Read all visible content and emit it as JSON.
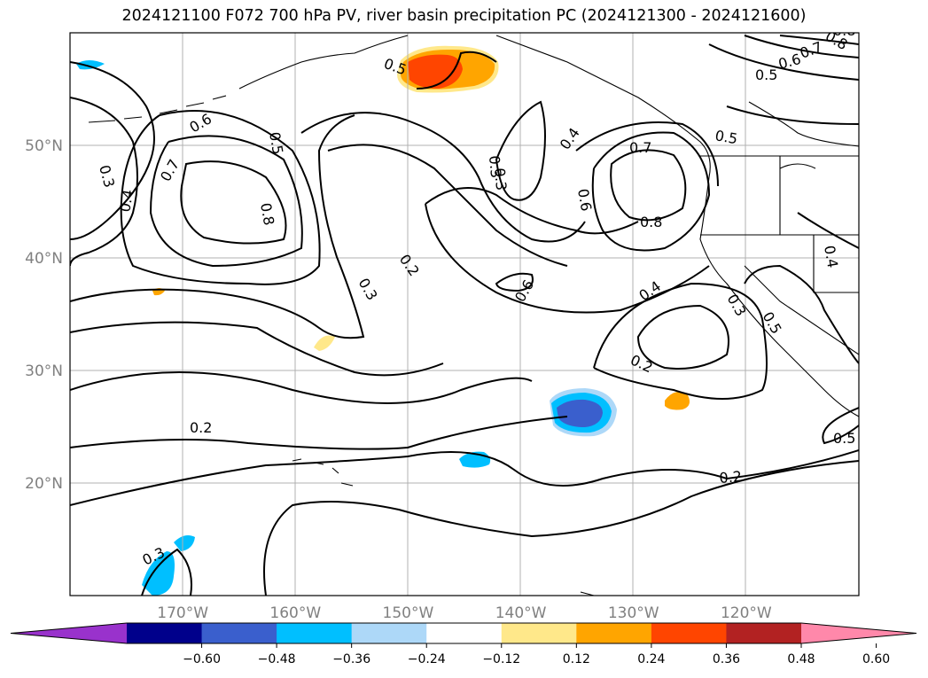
{
  "title": "2024121100 F072 700 hPa PV, river basin precipitation PC (2024121300 - 2024121600)",
  "lat_labels": [
    {
      "text": "50°N",
      "lat": 50
    },
    {
      "text": "40°N",
      "lat": 40
    },
    {
      "text": "30°N",
      "lat": 30
    },
    {
      "text": "20°N",
      "lat": 20
    }
  ],
  "lon_labels": [
    {
      "text": "170°W",
      "lon": -170
    },
    {
      "text": "160°W",
      "lon": -160
    },
    {
      "text": "150°W",
      "lon": -150
    },
    {
      "text": "140°W",
      "lon": -140
    },
    {
      "text": "130°W",
      "lon": -130
    },
    {
      "text": "120°W",
      "lon": -120
    }
  ],
  "extent": {
    "lon": [
      -180,
      -110
    ],
    "lat": [
      10,
      60
    ]
  },
  "contour_labels": [
    "0.3",
    "0.4",
    "0.6",
    "0.7",
    "0.8",
    "0.5",
    "0.3",
    "0.2",
    "0.3",
    "0.5",
    "0.4",
    "0.6",
    "0.7",
    "0.8",
    "0.6",
    "0.4",
    "0.2",
    "0.3",
    "0.5",
    "0.4",
    "0.5",
    "0.6",
    "0.7",
    "0.8",
    "0.5",
    "0.2",
    "0.2",
    "0.3",
    "0.5",
    "0.3",
    "0.8"
  ],
  "colorbar": {
    "colors": [
      "#9932cc",
      "#00008b",
      "#3a5fcd",
      "#00bfff",
      "#add8f8",
      "#ffffff",
      "#ffe88a",
      "#ffa500",
      "#ff4500",
      "#b22222",
      "#ff88aa"
    ],
    "ticks": [
      "−0.60",
      "−0.48",
      "−0.36",
      "−0.24",
      "−0.12",
      "0.12",
      "0.24",
      "0.36",
      "0.48",
      "0.60"
    ]
  }
}
